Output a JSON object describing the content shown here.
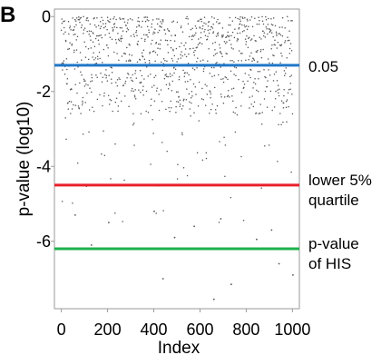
{
  "panel_label": "B",
  "chart_data": {
    "type": "scatter",
    "title": "",
    "xlabel": "Index",
    "ylabel": "p-value (log10)",
    "xlim": [
      -30,
      1030
    ],
    "ylim": [
      -7.8,
      0.2
    ],
    "x_ticks": [
      0,
      200,
      400,
      600,
      800,
      1000
    ],
    "y_ticks": [
      0,
      -2,
      -4,
      -6
    ],
    "grid": false,
    "point_color": "#555555",
    "n_points": 1000,
    "seed": 7,
    "distribution_note": "",
    "points_sample": [
      {
        "x": 660,
        "y": -7.55
      },
      {
        "x": 440,
        "y": -7.0
      },
      {
        "x": 735,
        "y": -7.15
      },
      {
        "x": 942,
        "y": -6.6
      },
      {
        "x": 1002,
        "y": -6.9
      },
      {
        "x": 130,
        "y": -6.1
      },
      {
        "x": 305,
        "y": -6.2
      },
      {
        "x": 490,
        "y": -5.9
      },
      {
        "x": 845,
        "y": -5.95
      },
      {
        "x": 60,
        "y": -5.3
      },
      {
        "x": 205,
        "y": -5.5
      },
      {
        "x": 402,
        "y": -5.2
      },
      {
        "x": 575,
        "y": -5.6
      },
      {
        "x": 690,
        "y": -5.4
      },
      {
        "x": 910,
        "y": -5.7
      }
    ],
    "reference_lines": [
      {
        "y": -1.3,
        "color": "#1f77c8",
        "label_lines": [
          "0.05"
        ]
      },
      {
        "y": -4.5,
        "color": "#e8202a",
        "label_lines": [
          "lower 5%",
          "quartile"
        ]
      },
      {
        "y": -6.2,
        "color": "#1db14b",
        "label_lines": [
          "p-value",
          "of HIS"
        ]
      }
    ]
  }
}
